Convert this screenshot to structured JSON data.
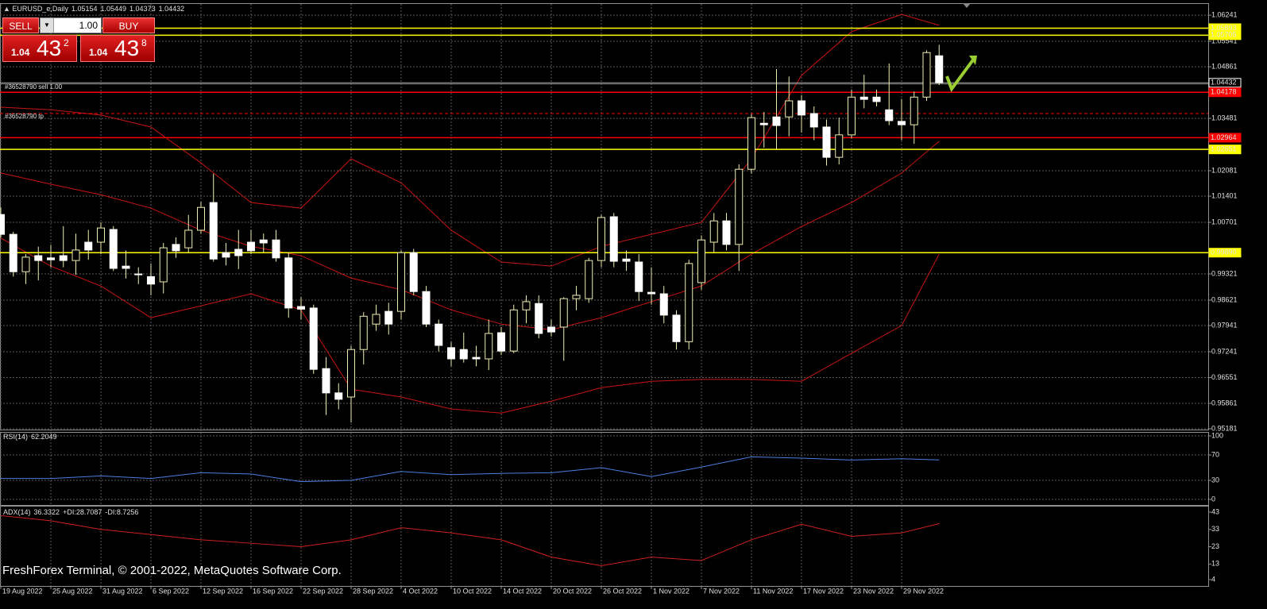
{
  "chart_data": [
    {
      "type": "candlestick",
      "title": "EURUSD_e,Daily",
      "open": [
        1.0091,
        1.0038,
        0.9938,
        0.9981,
        0.9975,
        0.9981,
        0.9968,
        1.0017,
        1.0017,
        1.0051,
        0.9953,
        0.9932,
        0.9925,
        0.9911,
        1.0011,
        1.0002,
        1.0049,
        1.0123,
        0.9989,
        0.9998,
        1.0017,
        1.0023,
        1.0023,
        0.9975,
        0.9845,
        0.9841,
        0.9679,
        0.9614,
        0.9603,
        0.973,
        0.9798,
        0.9832,
        0.9832,
        0.9989,
        0.9885,
        0.9798,
        0.9735,
        0.973,
        0.9709,
        0.9705,
        0.9775,
        0.9726,
        0.9836,
        0.9853,
        0.979,
        0.979,
        0.9866,
        0.9866,
        0.9968,
        1.0085,
        0.9972,
        0.9964,
        0.9883,
        0.9879,
        0.9822,
        0.9751,
        0.9909,
        1.0017,
        1.0074,
        1.0011,
        1.0212,
        1.0335,
        1.0352,
        1.0352,
        1.0395,
        1.0361,
        1.0325,
        1.0244,
        1.0304,
        1.0405,
        1.0405,
        1.0371,
        1.034,
        1.0331,
        1.0405,
        1.05154
      ],
      "high": [
        1.011,
        1.0045,
        0.9985,
        1.0005,
        1.001,
        1.006,
        1.004,
        1.005,
        1.007,
        1.006,
        0.9995,
        0.995,
        0.996,
        1.0015,
        1.003,
        1.009,
        1.0125,
        1.02,
        1.0015,
        1.005,
        1.005,
        1.004,
        1.005,
        0.999,
        0.987,
        0.985,
        0.971,
        0.964,
        0.974,
        0.983,
        0.985,
        0.9855,
        0.9995,
        0.9999,
        0.99,
        0.981,
        0.975,
        0.9775,
        0.974,
        0.981,
        0.979,
        0.985,
        0.9875,
        0.9875,
        0.981,
        0.987,
        0.99,
        0.9975,
        1.009,
        1.0095,
        0.9995,
        0.9985,
        0.995,
        0.99,
        0.9835,
        0.997,
        1.0035,
        1.0095,
        1.0095,
        1.0225,
        1.036,
        1.0365,
        1.048,
        1.046,
        1.041,
        1.038,
        1.0345,
        1.035,
        1.0425,
        1.0465,
        1.0425,
        1.0495,
        1.04,
        1.042,
        1.053,
        1.05449
      ],
      "low": [
        1.003,
        0.9925,
        0.9905,
        0.9915,
        0.995,
        0.995,
        0.993,
        0.997,
        0.9985,
        0.994,
        0.992,
        0.9905,
        0.9875,
        0.988,
        0.9975,
        0.999,
        1.004,
        0.9965,
        0.9955,
        0.9945,
        0.9985,
        0.999,
        0.9965,
        0.9815,
        0.981,
        0.9665,
        0.9555,
        0.957,
        0.9535,
        0.969,
        0.978,
        0.977,
        0.981,
        0.9875,
        0.979,
        0.9725,
        0.9685,
        0.9695,
        0.9685,
        0.9675,
        0.9715,
        0.972,
        0.98,
        0.976,
        0.9765,
        0.97,
        0.9835,
        0.9855,
        0.995,
        0.995,
        0.994,
        0.986,
        0.985,
        0.98,
        0.973,
        0.973,
        0.989,
        0.999,
        0.9995,
        0.994,
        1.02,
        1.027,
        1.0265,
        1.03,
        1.031,
        1.029,
        1.0222,
        1.0225,
        1.0295,
        1.0375,
        1.038,
        1.033,
        1.029,
        1.028,
        1.0395,
        1.04373
      ],
      "close": [
        1.0038,
        0.9938,
        0.9977,
        0.9968,
        0.997,
        0.9968,
        0.9996,
        0.9996,
        1.0055,
        0.9947,
        0.9947,
        0.993,
        0.9905,
        1.0002,
        0.9994,
        1.0049,
        1.011,
        0.9972,
        0.9977,
        0.9981,
        0.9994,
        1.0015,
        0.9975,
        0.9841,
        0.9838,
        0.9677,
        0.9614,
        0.9597,
        0.973,
        0.9819,
        0.9824,
        0.9798,
        0.9989,
        0.9885,
        0.9798,
        0.9741,
        0.9705,
        0.9705,
        0.9705,
        0.9773,
        0.9726,
        0.9836,
        0.9858,
        0.9773,
        0.9777,
        0.9866,
        0.9875,
        0.9968,
        1.0083,
        0.9966,
        0.9966,
        0.9885,
        0.9879,
        0.9822,
        0.9751,
        0.996,
        1.0023,
        1.0074,
        1.0011,
        1.0212,
        1.035,
        1.0331,
        1.0329,
        1.0395,
        1.0357,
        1.0325,
        1.0244,
        1.0304,
        1.0405,
        1.0399,
        1.0393,
        1.0342,
        1.0331,
        1.0405,
        1.0524,
        1.04432
      ],
      "up_color": "#000000",
      "down_color": "#ffffff",
      "wick_color": "#eeeeb0",
      "ylim": [
        0.9516,
        1.0654
      ],
      "yticks": [
        1.06241,
        1.05541,
        1.04861,
        1.03481,
        1.02081,
        1.01401,
        1.00701,
        0.99321,
        0.98621,
        0.97941,
        0.97241,
        0.96551,
        0.95861,
        0.95181
      ],
      "xticks": [
        {
          "value": 0,
          "label": "19 Aug 2022"
        },
        {
          "value": 4,
          "label": "25 Aug 2022"
        },
        {
          "value": 8,
          "label": "31 Aug 2022"
        },
        {
          "value": 12,
          "label": "6 Sep 2022"
        },
        {
          "value": 16,
          "label": "12 Sep 2022"
        },
        {
          "value": 20,
          "label": "16 Sep 2022"
        },
        {
          "value": 24,
          "label": "22 Sep 2022"
        },
        {
          "value": 28,
          "label": "28 Sep 2022"
        },
        {
          "value": 32,
          "label": "4 Oct 2022"
        },
        {
          "value": 36,
          "label": "10 Oct 2022"
        },
        {
          "value": 40,
          "label": "14 Oct 2022"
        },
        {
          "value": 44,
          "label": "20 Oct 2022"
        },
        {
          "value": 48,
          "label": "26 Oct 2022"
        },
        {
          "value": 52,
          "label": "1 Nov 2022"
        },
        {
          "value": 56,
          "label": "7 Nov 2022"
        },
        {
          "value": 60,
          "label": "11 Nov 2022"
        },
        {
          "value": 64,
          "label": "17 Nov 2022"
        },
        {
          "value": 68,
          "label": "23 Nov 2022"
        },
        {
          "value": 72,
          "label": "29 Nov 2022"
        }
      ],
      "grid": true,
      "bands": {
        "color": "#c81414",
        "x": [
          0,
          4,
          8,
          12,
          16,
          20,
          24,
          28,
          32,
          36,
          40,
          44,
          48,
          52,
          56,
          60,
          64,
          68,
          72,
          75
        ],
        "upper": [
          1.0378,
          1.0371,
          1.0357,
          1.0325,
          1.0229,
          1.0123,
          1.0108,
          1.024,
          1.0176,
          1.0049,
          0.9964,
          0.9953,
          1.0006,
          1.0038,
          1.007,
          1.024,
          1.0463,
          1.058,
          1.0626,
          1.0597
        ],
        "middle": [
          1.0202,
          1.0172,
          1.0144,
          1.0108,
          1.0049,
          1.0006,
          0.9981,
          0.9921,
          0.989,
          0.9836,
          0.9798,
          0.9783,
          0.9815,
          0.9858,
          0.99,
          0.9985,
          1.0059,
          1.0123,
          1.0202,
          1.0287
        ],
        "lower": [
          1.0028,
          0.9953,
          0.99,
          0.9815,
          0.9847,
          0.9879,
          0.9836,
          0.9624,
          0.9603,
          0.9571,
          0.956,
          0.9592,
          0.9628,
          0.9645,
          0.965,
          0.965,
          0.9645,
          0.972,
          0.9794,
          0.9985
        ]
      },
      "hlines": [
        {
          "value": 1.05893,
          "color": "#ffff00"
        },
        {
          "value": 1.05705,
          "color": "#ffff00"
        },
        {
          "value": 1.04432,
          "color": "#a0a0a0"
        },
        {
          "value": 1.04178,
          "color": "#ff0000"
        },
        {
          "value": 1.02964,
          "color": "#ff0000"
        },
        {
          "value": 1.02651,
          "color": "#ffff00"
        },
        {
          "value": 0.9989,
          "label": "0.99890",
          "color": "#ffff00"
        }
      ],
      "orders": [
        {
          "label": "#36528790 sell 1.00",
          "value": 1.044,
          "color": "#808080",
          "dashed": false
        },
        {
          "label": "#36528790 tp",
          "value": 1.0361,
          "color": "#ff0000",
          "dashed": true
        }
      ]
    },
    {
      "type": "line",
      "title": "RSI(14)",
      "color": "#4a7fe0",
      "x": [
        0,
        4,
        8,
        12,
        16,
        20,
        24,
        28,
        32,
        36,
        40,
        44,
        48,
        52,
        56,
        60,
        64,
        68,
        72,
        75
      ],
      "values": [
        33,
        33,
        37,
        33,
        42,
        40,
        28,
        30,
        44,
        39,
        41,
        42,
        50,
        36,
        51,
        67,
        65,
        62,
        64,
        62.2049
      ],
      "ylim": [
        -8.75,
        105
      ],
      "yticks": [
        100,
        70,
        30,
        0
      ],
      "grid": true
    },
    {
      "type": "line",
      "title": "ADX(14)",
      "color": "#d02020",
      "plus_di_label": "+DI:",
      "plus_di": 28.7087,
      "minus_di_label": "-DI:",
      "minus_di": 8.7256,
      "x": [
        0,
        4,
        8,
        12,
        16,
        20,
        24,
        28,
        32,
        36,
        40,
        44,
        48,
        52,
        56,
        60,
        64,
        68,
        72,
        75
      ],
      "values": [
        41,
        38,
        33,
        30,
        27,
        25,
        23,
        27,
        34,
        31,
        27,
        17,
        12,
        17,
        15,
        27,
        36,
        29,
        31,
        36.3322
      ],
      "ylim": [
        0.3,
        46.2
      ],
      "yticks": [
        43,
        33,
        23,
        13,
        4
      ],
      "grid": false
    }
  ],
  "trade_panel": {
    "sell": "SELL",
    "buy": "BUY",
    "lot": "1.00",
    "bid": {
      "big_figure": "1.04",
      "pips": "43",
      "fraction": "2"
    },
    "ask": {
      "big_figure": "1.04",
      "pips": "43",
      "fraction": "8"
    }
  },
  "footer": "FreshForex Terminal, © 2001-2022, MetaQuotes Software Corp."
}
